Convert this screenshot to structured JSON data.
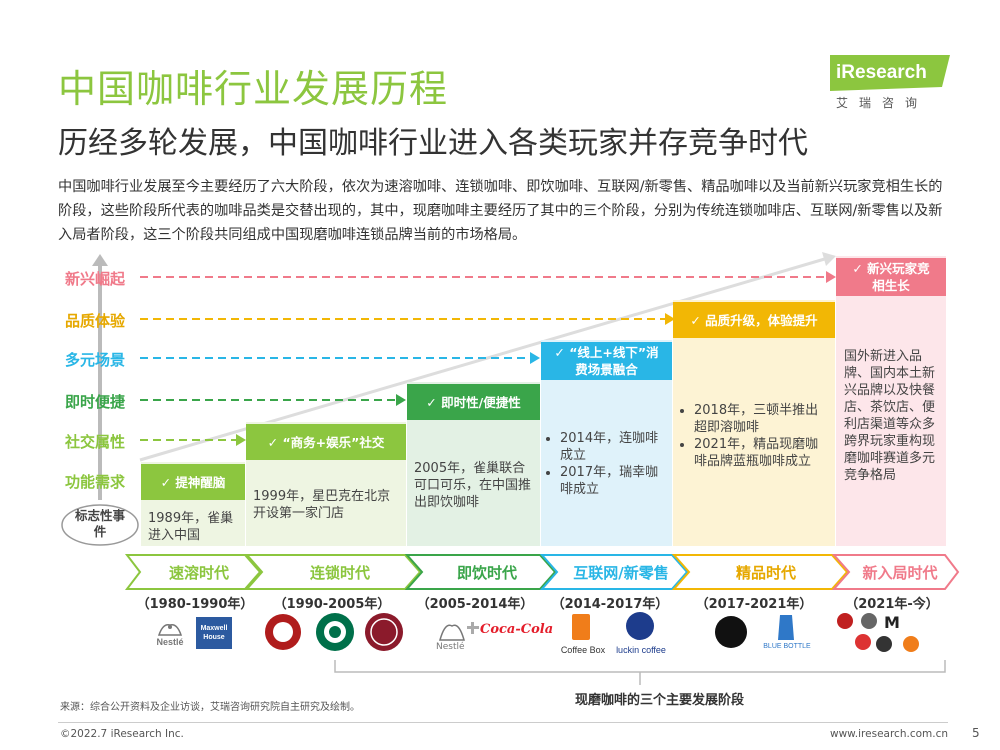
{
  "title": "中国咖啡行业发展历程",
  "subtitle": "历经多轮发展，中国咖啡行业进入各类玩家并存竞争时代",
  "logo": {
    "brand": "iResearch",
    "sub": "艾瑞咨询"
  },
  "intro": "中国咖啡行业发展至今主要经历了六大阶段，依次为速溶咖啡、连锁咖啡、即饮咖啡、互联网/新零售、精品咖啡以及当前新兴玩家竞相生长的阶段，这些阶段所代表的咖啡品类是交替出现的，其中，现磨咖啡主要经历了其中的三个阶段，分别为传统连锁咖啡店、互联网/新零售以及新入局者阶段，这三个阶段共同组成中国现磨咖啡连锁品牌当前的市场格局。",
  "stages": [
    {
      "label": "新兴崛起",
      "color": "#f07a8a"
    },
    {
      "label": "品质体验",
      "color": "#f2b705"
    },
    {
      "label": "多元场景",
      "color": "#29b6e6"
    },
    {
      "label": "即时便捷",
      "color": "#3aa54a"
    },
    {
      "label": "社交属性",
      "color": "#8cc63f"
    },
    {
      "label": "功能需求",
      "color": "#8cc63f"
    }
  ],
  "milestone_label": "标志性事件",
  "columns": [
    {
      "head": "✓ 提神醒脑",
      "text": "1989年，雀巢进入中国"
    },
    {
      "head": "✓ “商务+娱乐”社交",
      "text": "1999年，星巴克在北京开设第一家门店"
    },
    {
      "head": "✓ 即时性/便捷性",
      "text": "2005年，雀巢联合可口可乐，在中国推出即饮咖啡"
    },
    {
      "head": "✓ “线上+线下”消费场景融合",
      "items": [
        "2014年，连咖啡成立",
        "2017年，瑞幸咖啡成立"
      ]
    },
    {
      "head": "✓ 品质升级，体验提升",
      "items": [
        "2018年，三顿半推出超即溶咖啡",
        "2021年，精品现磨咖啡品牌蓝瓶咖啡成立"
      ]
    },
    {
      "head": "✓ 新兴玩家竞相生长",
      "text": "国外新进入品牌、国内本土新兴品牌以及快餐店、茶饮店、便利店渠道等众多跨界玩家重构现磨咖啡赛道多元竞争格局"
    }
  ],
  "eras": [
    {
      "name": "速溶时代",
      "years": "（1980-1990年）",
      "color": "#8cc63f"
    },
    {
      "name": "连锁时代",
      "years": "（1990-2005年）",
      "color": "#8cc63f"
    },
    {
      "name": "即饮时代",
      "years": "（2005-2014年）",
      "color": "#3aa54a"
    },
    {
      "name": "互联网/新零售",
      "years": "（2014-2017年）",
      "color": "#29b6e6"
    },
    {
      "name": "精品时代",
      "years": "（2017-2021年）",
      "color": "#f2b705"
    },
    {
      "name": "新入局时代",
      "years": "（2021年-今）",
      "color": "#f07a8a"
    }
  ],
  "brands": {
    "nestle": "Nestlé",
    "maxwell": "Maxwell House",
    "coffeebox": "Coffee Box",
    "luckin": "luckin coffee",
    "bluebottle": "BLUE BOTTLE"
  },
  "bracket_label": "现磨咖啡的三个主要发展阶段",
  "source": "来源：综合公开资料及企业访谈，艾瑞咨询研究院自主研究及绘制。",
  "copyright": "©2022.7 iResearch Inc.",
  "website": "www.iresearch.com.cn",
  "page": "5"
}
